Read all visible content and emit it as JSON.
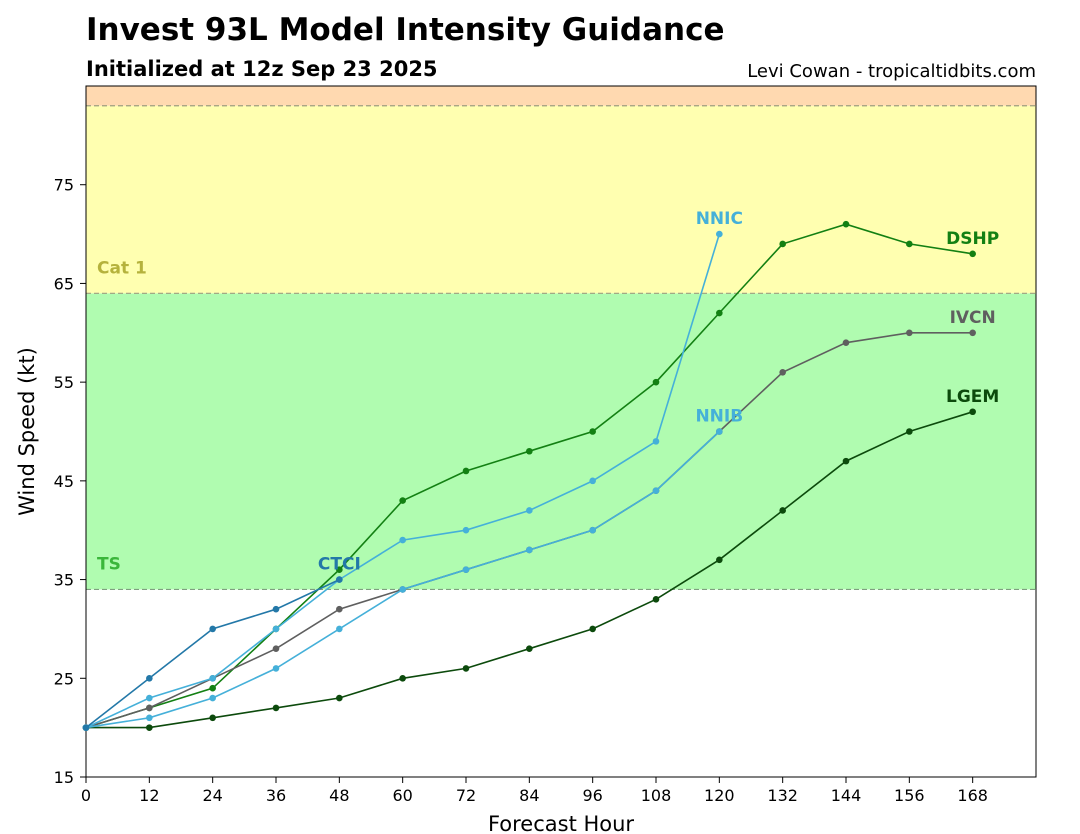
{
  "title": "Invest 93L Model Intensity Guidance",
  "subtitle": "Initialized at 12z Sep 23 2025",
  "credit": "Levi Cowan - tropicaltidbits.com",
  "chart_data": {
    "type": "line",
    "xlabel": "Forecast Hour",
    "ylabel": "Wind Speed (kt)",
    "xlim": [
      0,
      180
    ],
    "ylim": [
      15,
      85
    ],
    "x_ticks": [
      0,
      12,
      24,
      36,
      48,
      60,
      72,
      84,
      96,
      108,
      120,
      132,
      144,
      156,
      168
    ],
    "y_ticks": [
      15,
      25,
      35,
      45,
      55,
      65,
      75
    ],
    "grid": false,
    "bands": [
      {
        "name": "TS",
        "from": 34,
        "to": 64,
        "color": "#b0fcb0",
        "label_color": "#3ab63a",
        "line_color": "#7f9f7f"
      },
      {
        "name": "Cat 1",
        "from": 64,
        "to": 83,
        "color": "#ffffb0",
        "label_color": "#b5b23c",
        "line_color": "#9f9f7f"
      },
      {
        "name": "",
        "from": 83,
        "to": 85,
        "color": "#ffd9b0",
        "label_color": "",
        "line_color": "#9f9f7f"
      }
    ],
    "series": [
      {
        "name": "DSHP",
        "color": "#138013",
        "x": [
          0,
          12,
          24,
          36,
          48,
          60,
          72,
          84,
          96,
          108,
          120,
          132,
          144,
          156,
          168
        ],
        "values": [
          20,
          22,
          24,
          30,
          36,
          43,
          46,
          48,
          50,
          55,
          62,
          69,
          71,
          69,
          68
        ]
      },
      {
        "name": "IVCN",
        "color": "#5f5f5f",
        "x": [
          0,
          12,
          24,
          36,
          48,
          60,
          72,
          84,
          96,
          108,
          120,
          132,
          144,
          156,
          168
        ],
        "values": [
          20,
          22,
          25,
          28,
          32,
          34,
          36,
          38,
          40,
          44,
          50,
          56,
          59,
          60,
          60
        ]
      },
      {
        "name": "LGEM",
        "color": "#0c4a0c",
        "x": [
          0,
          12,
          24,
          36,
          48,
          60,
          72,
          84,
          96,
          108,
          120,
          132,
          144,
          156,
          168
        ],
        "values": [
          20,
          20,
          21,
          22,
          23,
          25,
          26,
          28,
          30,
          33,
          37,
          42,
          47,
          50,
          52
        ]
      },
      {
        "name": "NNIC",
        "color": "#45b0d9",
        "x": [
          0,
          12,
          24,
          36,
          48,
          60,
          72,
          84,
          96,
          108,
          120
        ],
        "values": [
          20,
          23,
          25,
          30,
          35,
          39,
          40,
          42,
          45,
          49,
          70
        ]
      },
      {
        "name": "NNIB",
        "color": "#45b0d9",
        "x": [
          0,
          12,
          24,
          36,
          48,
          60,
          72,
          84,
          96,
          108,
          120
        ],
        "values": [
          20,
          21,
          23,
          26,
          30,
          34,
          36,
          38,
          40,
          44,
          50
        ]
      },
      {
        "name": "CTCI",
        "color": "#2378a8",
        "x": [
          0,
          12,
          24,
          36,
          48
        ],
        "values": [
          20,
          25,
          30,
          32,
          35
        ]
      }
    ],
    "series_labels": [
      {
        "name": "DSHP",
        "x": 168,
        "y": 68,
        "color": "#138013"
      },
      {
        "name": "IVCN",
        "x": 168,
        "y": 60,
        "color": "#5f5f5f"
      },
      {
        "name": "LGEM",
        "x": 168,
        "y": 52,
        "color": "#0c4a0c"
      },
      {
        "name": "NNIC",
        "x": 120,
        "y": 70,
        "color": "#45b0d9"
      },
      {
        "name": "NNIB",
        "x": 120,
        "y": 50,
        "color": "#45b0d9"
      },
      {
        "name": "CTCI",
        "x": 48,
        "y": 35,
        "color": "#2378a8"
      }
    ]
  }
}
